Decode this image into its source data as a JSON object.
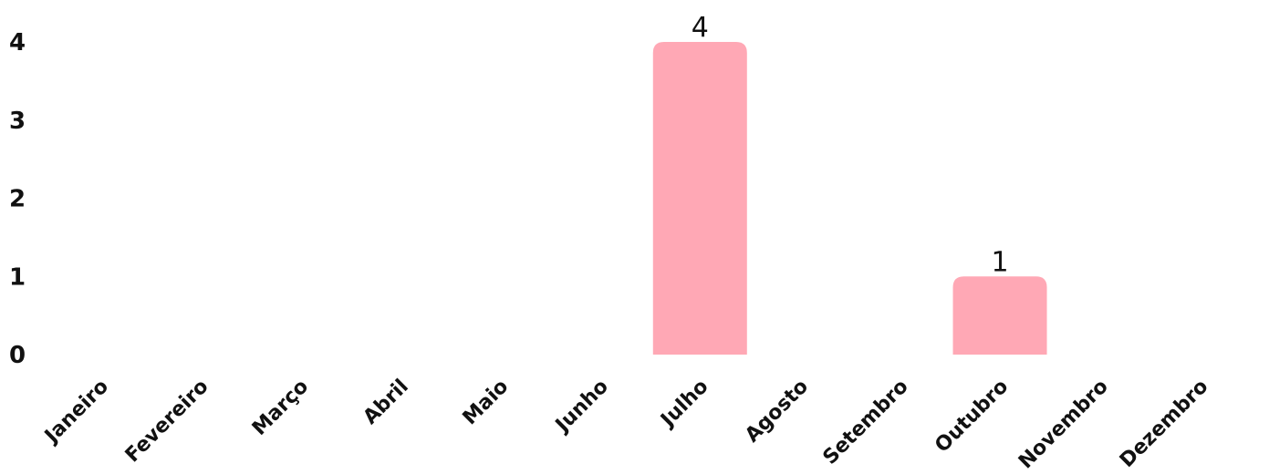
{
  "chart_data": {
    "type": "bar",
    "categories": [
      "Janeiro",
      "Fevereiro",
      "Março",
      "Abril",
      "Maio",
      "Junho",
      "Julho",
      "Agosto",
      "Setembro",
      "Outubro",
      "Novembro",
      "Dezembro"
    ],
    "values": [
      0,
      0,
      0,
      0,
      0,
      0,
      4,
      0,
      0,
      1,
      0,
      0
    ],
    "data_labels": [
      "",
      "",
      "",
      "",
      "",
      "",
      "4",
      "",
      "",
      "1",
      "",
      ""
    ],
    "y_ticks": [
      "0",
      "1",
      "2",
      "3",
      "4"
    ],
    "ylim": [
      0,
      4
    ],
    "grid": false,
    "legend": "none",
    "bar_color": "#ffa8b5",
    "text_color": "#111111",
    "title": "",
    "xlabel": "",
    "ylabel": ""
  }
}
